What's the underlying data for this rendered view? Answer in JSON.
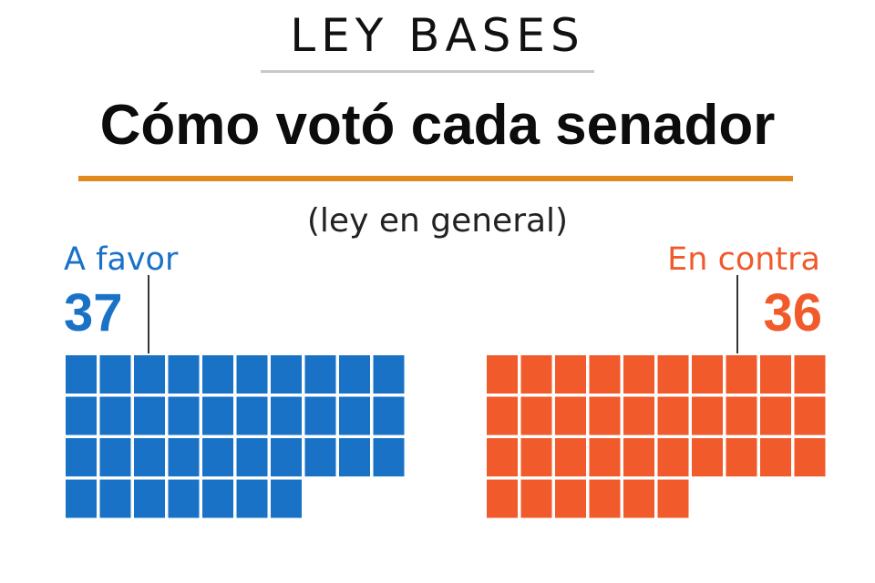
{
  "header": {
    "kicker": "LEY BASES",
    "title": "Cómo votó cada senador",
    "subtitle": "(ley en general)"
  },
  "chart_data": {
    "type": "waffle",
    "title": "Cómo votó cada senador",
    "subtitle": "(ley en general)",
    "categories": [
      "A favor",
      "En contra"
    ],
    "values": [
      37,
      36
    ],
    "series": [
      {
        "name": "A favor",
        "value": 37,
        "color": "#1a72c6"
      },
      {
        "name": "En contra",
        "value": 36,
        "color": "#f15a2b"
      }
    ]
  },
  "groups": {
    "favor": {
      "label": "A favor",
      "count": "37",
      "color": "#1a72c6"
    },
    "contra": {
      "label": "En contra",
      "count": "36",
      "color": "#f15a2b"
    }
  },
  "colors": {
    "rule_accent": "#e08a1e",
    "rule_kicker": "#c8c8c8"
  }
}
